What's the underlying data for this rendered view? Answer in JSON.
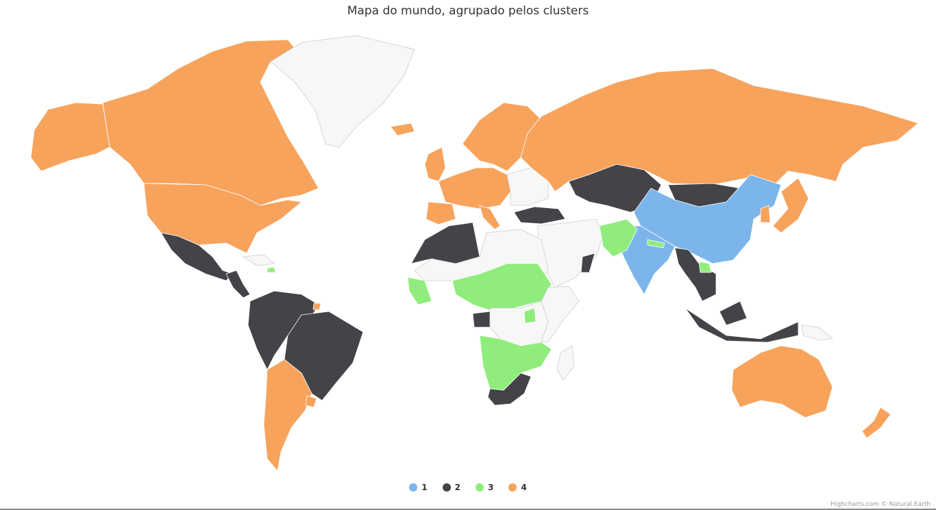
{
  "title": "Mapa do mundo, agrupado pelos clusters",
  "colors": {
    "1": "#7cb5ec",
    "2": "#434348",
    "3": "#90ed7d",
    "4": "#f7a35c",
    "none": "#f7f7f7",
    "border": "#cccccc"
  },
  "legend": [
    {
      "label": "1",
      "cluster": "1"
    },
    {
      "label": "2",
      "cluster": "2"
    },
    {
      "label": "3",
      "cluster": "3"
    },
    {
      "label": "4",
      "cluster": "4"
    }
  ],
  "credits": "Highcharts.com © Natural Earth",
  "regions": [
    {
      "name": "canada-greenland-arctic",
      "cluster": "4"
    },
    {
      "name": "alaska",
      "cluster": "4"
    },
    {
      "name": "united-states",
      "cluster": "4"
    },
    {
      "name": "greenland",
      "cluster": "none"
    },
    {
      "name": "mexico",
      "cluster": "2"
    },
    {
      "name": "central-america",
      "cluster": "2"
    },
    {
      "name": "cuba-caribbean",
      "cluster": "none"
    },
    {
      "name": "haiti",
      "cluster": "3"
    },
    {
      "name": "south-america-north",
      "cluster": "2"
    },
    {
      "name": "brazil",
      "cluster": "2"
    },
    {
      "name": "french-guiana",
      "cluster": "4"
    },
    {
      "name": "argentina-chile",
      "cluster": "4"
    },
    {
      "name": "uruguay",
      "cluster": "4"
    },
    {
      "name": "iceland",
      "cluster": "4"
    },
    {
      "name": "uk-ireland",
      "cluster": "4"
    },
    {
      "name": "scandinavia",
      "cluster": "4"
    },
    {
      "name": "western-europe",
      "cluster": "4"
    },
    {
      "name": "iberia",
      "cluster": "4"
    },
    {
      "name": "italy",
      "cluster": "4"
    },
    {
      "name": "eastern-europe",
      "cluster": "none"
    },
    {
      "name": "russia",
      "cluster": "4"
    },
    {
      "name": "kazakhstan-central-asia",
      "cluster": "2"
    },
    {
      "name": "mongolia",
      "cluster": "2"
    },
    {
      "name": "china",
      "cluster": "1"
    },
    {
      "name": "india",
      "cluster": "1"
    },
    {
      "name": "turkey",
      "cluster": "2"
    },
    {
      "name": "middle-east",
      "cluster": "none"
    },
    {
      "name": "oman",
      "cluster": "2"
    },
    {
      "name": "afghanistan-pakistan",
      "cluster": "3"
    },
    {
      "name": "nepal",
      "cluster": "3"
    },
    {
      "name": "southeast-asia",
      "cluster": "2"
    },
    {
      "name": "laos",
      "cluster": "3"
    },
    {
      "name": "indonesia",
      "cluster": "2"
    },
    {
      "name": "japan",
      "cluster": "4"
    },
    {
      "name": "korea",
      "cluster": "4"
    },
    {
      "name": "north-africa",
      "cluster": "2"
    },
    {
      "name": "sahara",
      "cluster": "none"
    },
    {
      "name": "sahel-west-africa",
      "cluster": "3"
    },
    {
      "name": "west-africa-coast",
      "cluster": "3"
    },
    {
      "name": "gabon",
      "cluster": "2"
    },
    {
      "name": "central-africa",
      "cluster": "none"
    },
    {
      "name": "east-africa",
      "cluster": "none"
    },
    {
      "name": "uganda-area",
      "cluster": "3"
    },
    {
      "name": "southern-africa",
      "cluster": "3"
    },
    {
      "name": "south-africa",
      "cluster": "2"
    },
    {
      "name": "madagascar",
      "cluster": "none"
    },
    {
      "name": "australia",
      "cluster": "4"
    },
    {
      "name": "new-zealand",
      "cluster": "4"
    },
    {
      "name": "papua-new-guinea",
      "cluster": "none"
    }
  ]
}
